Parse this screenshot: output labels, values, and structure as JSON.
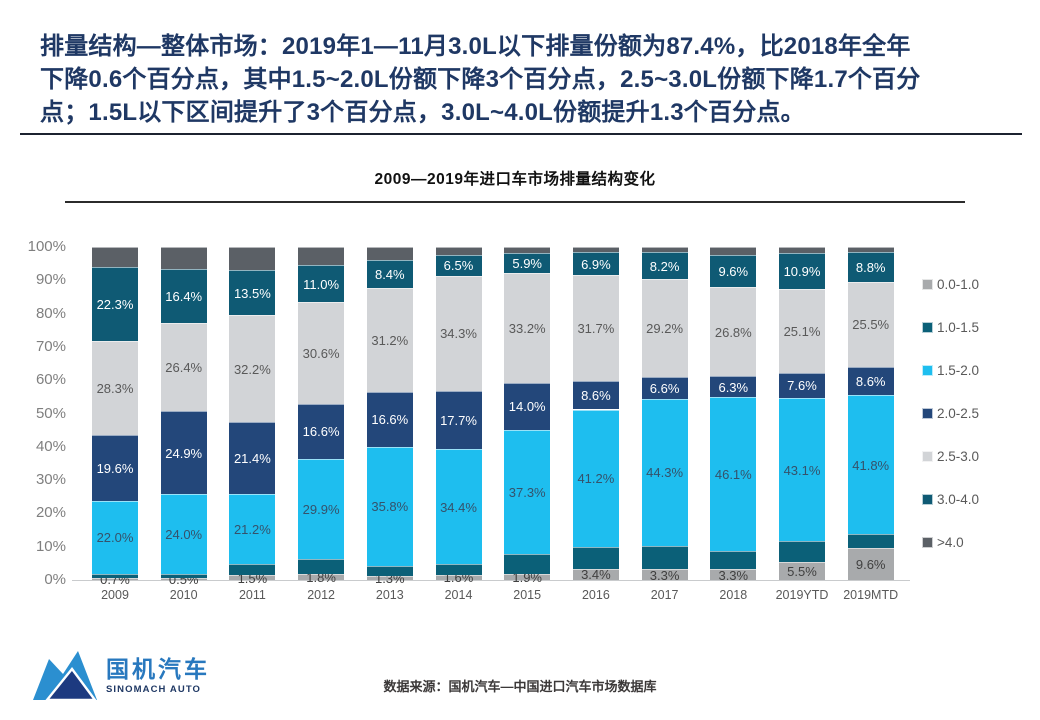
{
  "headline": {
    "color": "#1F3864",
    "lines": [
      "排量结构—整体市场：2019年1—11月3.0L以下排量份额为87.4%，比2018年全年",
      "下降0.6个百分点，其中1.5~2.0L份额下降3个百分点，2.5~3.0L份额下降1.7个百分",
      "点；1.5L以下区间提升了3个百分点，3.0L~4.0L份额提升1.3个百分点。"
    ]
  },
  "chart_data": {
    "type": "bar",
    "stacked": true,
    "title": "2009—2019年进口车市场排量结构变化",
    "categories": [
      "2009",
      "2010",
      "2011",
      "2012",
      "2013",
      "2014",
      "2015",
      "2016",
      "2017",
      "2018",
      "2019YTD",
      "2019MTD"
    ],
    "unit": "percent share of market, each bar sums to 100%",
    "series": [
      {
        "name": "0.0-1.0",
        "color": "#A8AAAC",
        "label_color": "#404040",
        "labeled": true,
        "values": [
          0.7,
          0.5,
          1.5,
          1.8,
          1.3,
          1.6,
          1.9,
          3.4,
          3.3,
          3.3,
          5.5,
          9.6
        ]
      },
      {
        "name": "1.0-1.5",
        "color": "#0B6078",
        "label_color": "#FFFFFF",
        "labeled": false,
        "values_estimated": true,
        "values": [
          1.1,
          1.3,
          3.2,
          4.6,
          2.9,
          3.2,
          5.9,
          6.6,
          6.9,
          5.5,
          6.1,
          4.1
        ]
      },
      {
        "name": "1.5-2.0",
        "color": "#1EBEEF",
        "label_color": "#35526B",
        "labeled": true,
        "values": [
          22.0,
          24.0,
          21.2,
          29.9,
          35.8,
          34.4,
          37.3,
          41.2,
          44.3,
          46.1,
          43.1,
          41.8
        ]
      },
      {
        "name": "2.0-2.5",
        "color": "#23477A",
        "label_color": "#FFFFFF",
        "labeled": true,
        "values": [
          19.6,
          24.9,
          21.4,
          16.6,
          16.6,
          17.7,
          14.0,
          8.6,
          6.6,
          6.3,
          7.6,
          8.6
        ]
      },
      {
        "name": "2.5-3.0",
        "color": "#D2D4D7",
        "label_color": "#595959",
        "labeled": true,
        "values": [
          28.3,
          26.4,
          32.2,
          30.6,
          31.2,
          34.3,
          33.2,
          31.7,
          29.2,
          26.8,
          25.1,
          25.5
        ]
      },
      {
        "name": "3.0-4.0",
        "color": "#0F5A74",
        "label_color": "#FFFFFF",
        "labeled": true,
        "values": [
          22.3,
          16.4,
          13.5,
          11.0,
          8.4,
          6.5,
          5.9,
          6.9,
          8.2,
          9.6,
          10.9,
          8.8
        ]
      },
      {
        "name": ">4.0",
        "color": "#5B6066",
        "label_color": "#FFFFFF",
        "labeled": false,
        "values_estimated": true,
        "values": [
          6.0,
          6.5,
          7.0,
          5.5,
          3.8,
          2.3,
          1.8,
          1.6,
          1.5,
          2.4,
          1.7,
          1.6
        ]
      }
    ],
    "ylim": [
      0,
      100
    ],
    "y_tick_step": 10,
    "y_tick_suffix": "%",
    "grid": false,
    "legend_position": "right",
    "note": "series 1.0-1.5 and >4.0 carry no data labels in the chart; their values are estimated from segment heights"
  },
  "footer": {
    "source": "数据来源：国机汽车—中国进口汽车市场数据库"
  },
  "logo": {
    "cn": "国机汽车",
    "en": "SINOMACH AUTO"
  }
}
